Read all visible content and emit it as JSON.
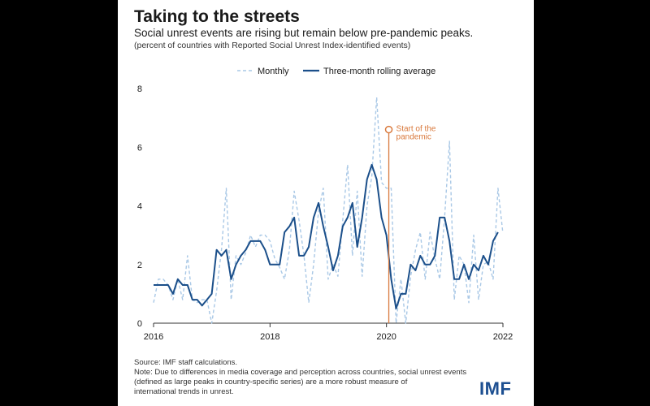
{
  "header": {
    "title": "Taking to the streets",
    "subtitle": "Social unrest events are rising but remain below pre-pandemic peaks.",
    "note": "(percent of countries with Reported Social Unrest Index-identified events)"
  },
  "footer": {
    "source": "Source: IMF staff calculations.",
    "note_lines": [
      "Note: Due to differences in media coverage and perception across countries, social unrest events",
      "(defined as large peaks in country-specific series) are a more robust measure of",
      "international trends in unrest."
    ],
    "logo": "IMF"
  },
  "colors": {
    "monthly": "#a9c8e6",
    "rolling": "#1b4f8a",
    "annotation": "#d9793c",
    "text": "#1a1a1a"
  },
  "chart_data": {
    "type": "line",
    "title": "",
    "xlabel": "",
    "ylabel": "",
    "x_start": 2016,
    "x_step": 0.0833,
    "xlim": [
      2016,
      2022
    ],
    "ylim": [
      0,
      8
    ],
    "xticks": [
      "2016",
      "2018",
      "2020",
      "2022"
    ],
    "yticks": [
      "0",
      "2",
      "4",
      "6",
      "8"
    ],
    "legend": {
      "position": "top-center"
    },
    "series": [
      {
        "name": "Monthly",
        "style": "dashed",
        "color": "#a9c8e6",
        "values": [
          0.7,
          1.5,
          1.5,
          1.3,
          0.8,
          1.5,
          0.8,
          2.3,
          0.8,
          0.7,
          0.8,
          0.8,
          0.0,
          1.1,
          2.5,
          4.6,
          0.8,
          2.3,
          2.0,
          2.4,
          3.0,
          2.6,
          3.0,
          3.0,
          2.8,
          2.2,
          1.9,
          1.5,
          2.5,
          4.5,
          3.5,
          2.3,
          0.7,
          2.0,
          3.8,
          4.6,
          1.5,
          2.0,
          1.6,
          3.5,
          5.4,
          2.3,
          4.5,
          1.6,
          4.0,
          5.0,
          7.7,
          4.8,
          4.6,
          4.6,
          0.0,
          1.5,
          0.0,
          1.6,
          2.5,
          3.1,
          1.5,
          3.1,
          2.2,
          1.5,
          3.6,
          6.2,
          0.8,
          2.3,
          2.0,
          0.7,
          3.0,
          0.8,
          2.0,
          2.1,
          1.5,
          4.6,
          3.1
        ]
      },
      {
        "name": "Three-month rolling average",
        "style": "solid",
        "color": "#1b4f8a",
        "values": [
          1.3,
          1.3,
          1.3,
          1.3,
          1.0,
          1.5,
          1.3,
          1.3,
          0.8,
          0.8,
          0.6,
          0.8,
          1.0,
          2.5,
          2.3,
          2.5,
          1.5,
          2.0,
          2.3,
          2.5,
          2.8,
          2.8,
          2.8,
          2.5,
          2.0,
          2.0,
          2.0,
          3.1,
          3.3,
          3.6,
          2.3,
          2.3,
          2.6,
          3.6,
          4.1,
          3.3,
          2.6,
          1.8,
          2.3,
          3.3,
          3.6,
          4.1,
          2.6,
          3.6,
          4.9,
          5.4,
          4.9,
          3.6,
          3.0,
          1.5,
          0.5,
          1.0,
          1.0,
          2.0,
          1.8,
          2.3,
          2.0,
          2.0,
          2.3,
          3.6,
          3.6,
          2.8,
          1.5,
          1.5,
          2.0,
          1.5,
          2.0,
          1.8,
          2.3,
          2.0,
          2.8,
          3.1
        ]
      }
    ],
    "annotations": [
      {
        "text_lines": [
          "Start of the",
          "pandemic"
        ],
        "x": 2020.04,
        "y": 6.6,
        "color": "#d9793c"
      }
    ]
  }
}
